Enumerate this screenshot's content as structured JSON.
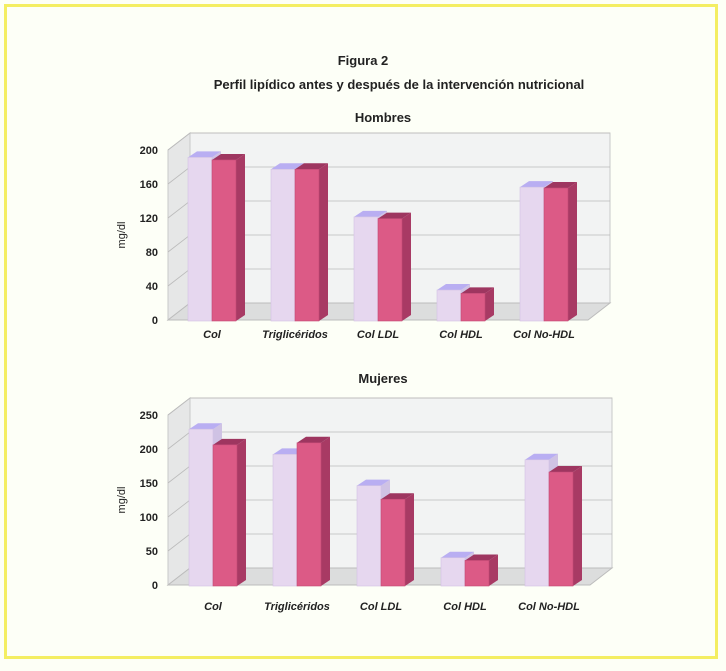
{
  "figure": {
    "title": "Figura 2",
    "subtitle": "Perfil lipídico antes y después de la intervención nutricional"
  },
  "colors": {
    "before_front": "#e6d7ef",
    "before_top": "#b9aef2",
    "before_side": "#cfc2e4",
    "after_front": "#dc5a86",
    "after_top": "#9e3660",
    "after_side": "#a83a64",
    "wall": "#f2f3f3",
    "grid": "#bbbbbb"
  },
  "chart_data": [
    {
      "type": "bar",
      "title": "Hombres",
      "ylabel": "mg/dl",
      "xlabel": "",
      "categories": [
        "Col",
        "Triglicéridos",
        "Col LDL",
        "Col HDL",
        "Col No-HDL"
      ],
      "yticks": [
        "0",
        "40",
        "80",
        "120",
        "160",
        "200"
      ],
      "ylim": [
        0,
        200
      ],
      "series": [
        {
          "values": [
            196,
            182,
            126,
            40,
            161
          ]
        },
        {
          "values": [
            193,
            182,
            124,
            36,
            160
          ]
        }
      ],
      "grid": true
    },
    {
      "type": "bar",
      "title": "Mujeres",
      "ylabel": "mg/dl",
      "xlabel": "",
      "categories": [
        "Col",
        "Triglicéridos",
        "Col LDL",
        "Col HDL",
        "Col No-HDL"
      ],
      "yticks": [
        "0",
        "50",
        "100",
        "150",
        "200",
        "250"
      ],
      "ylim": [
        0,
        250
      ],
      "series": [
        {
          "values": [
            235,
            198,
            152,
            46,
            190
          ]
        },
        {
          "values": [
            212,
            215,
            132,
            42,
            172
          ]
        }
      ],
      "grid": true
    }
  ]
}
